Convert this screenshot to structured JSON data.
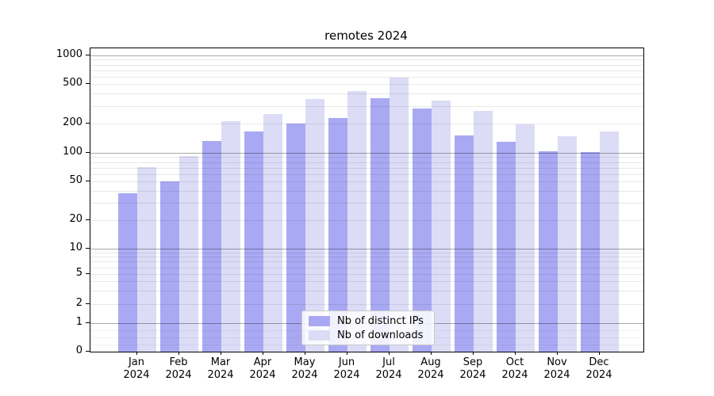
{
  "title": "remotes 2024",
  "chart_data": {
    "type": "bar",
    "title": "remotes 2024",
    "xlabel": "",
    "ylabel": "",
    "yscale": "symlog",
    "ylim": [
      0,
      1000
    ],
    "grid": true,
    "legend_position": "lower center",
    "yticks": [
      0,
      1,
      2,
      5,
      10,
      20,
      50,
      100,
      200,
      500,
      1000
    ],
    "categories": [
      "Jan 2024",
      "Feb 2024",
      "Mar 2024",
      "Apr 2024",
      "May 2024",
      "Jun 2024",
      "Jul 2024",
      "Aug 2024",
      "Sep 2024",
      "Oct 2024",
      "Nov 2024",
      "Dec 2024"
    ],
    "series": [
      {
        "name": "Nb of distinct IPs",
        "color": "#a9a9f3",
        "values": [
          38,
          50,
          133,
          166,
          200,
          228,
          362,
          281,
          150,
          129,
          103,
          101
        ]
      },
      {
        "name": "Nb of downloads",
        "color": "#dcdcf7",
        "values": [
          71,
          93,
          212,
          251,
          356,
          424,
          579,
          338,
          268,
          196,
          148,
          166
        ]
      }
    ]
  }
}
